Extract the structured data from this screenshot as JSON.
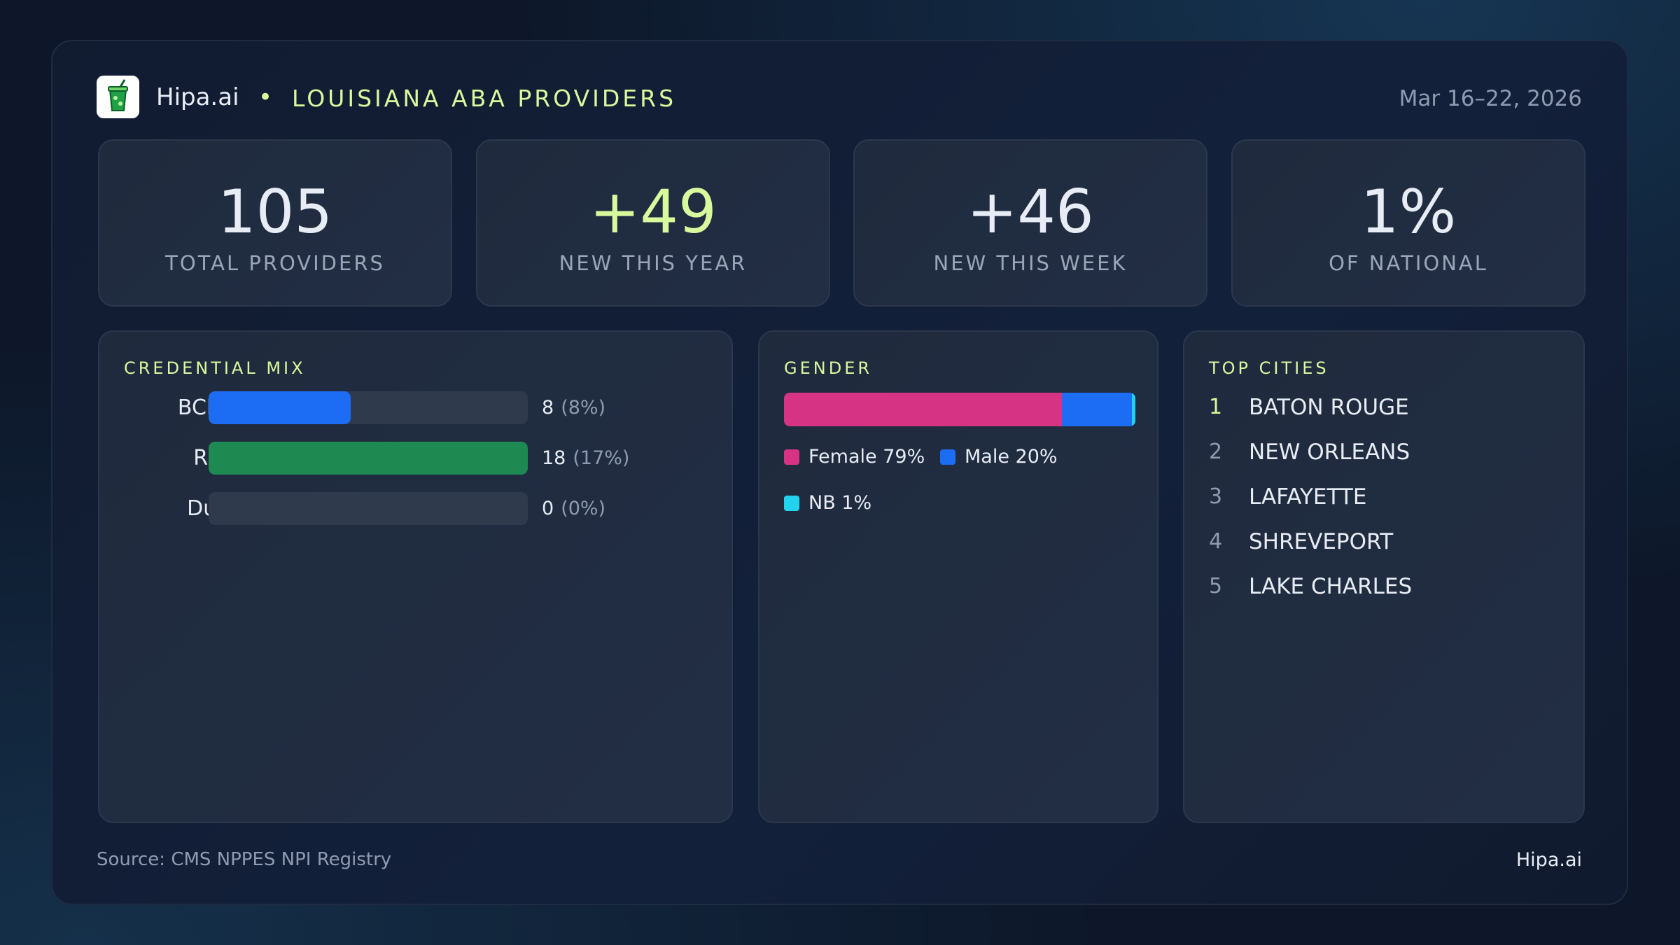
{
  "header": {
    "brand": "Hipa.ai",
    "title": "LOUISIANA ABA PROVIDERS",
    "date": "Mar 16–22, 2026"
  },
  "stats": [
    {
      "value": "105",
      "label": "TOTAL PROVIDERS"
    },
    {
      "value": "+49",
      "label": "NEW THIS YEAR"
    },
    {
      "value": "+46",
      "label": "NEW THIS WEEK"
    },
    {
      "value": "1%",
      "label": "OF NATIONAL"
    }
  ],
  "credential_mix": {
    "title": "CREDENTIAL MIX",
    "rows": [
      {
        "label": "BCBA",
        "value": 8,
        "share": "(8%)",
        "color": "#1c6cf4"
      },
      {
        "label": "RBT",
        "value": 18,
        "share": "(17%)",
        "color": "#1e8a52"
      },
      {
        "label": "Dual",
        "value": 0,
        "share": "(0%)",
        "color": "#8b5cf6"
      }
    ]
  },
  "gender": {
    "title": "GENDER",
    "segments": [
      {
        "name": "Female",
        "value": 79,
        "label": "Female 79%",
        "color": "#d63384"
      },
      {
        "name": "Male",
        "value": 20,
        "label": "Male 20%",
        "color": "#1c6cf4"
      },
      {
        "name": "NB",
        "value": 1,
        "label": "NB 1%",
        "color": "#22d3ee"
      }
    ]
  },
  "top_cities": {
    "title": "TOP CITIES",
    "cities": [
      {
        "rank": "1",
        "name": "BATON ROUGE"
      },
      {
        "rank": "2",
        "name": "NEW ORLEANS"
      },
      {
        "rank": "3",
        "name": "LAFAYETTE"
      },
      {
        "rank": "4",
        "name": "SHREVEPORT"
      },
      {
        "rank": "5",
        "name": "LAKE CHARLES"
      }
    ]
  },
  "footer": {
    "source": "Source: CMS NPPES NPI Registry",
    "brand": "Hipa.ai"
  }
}
